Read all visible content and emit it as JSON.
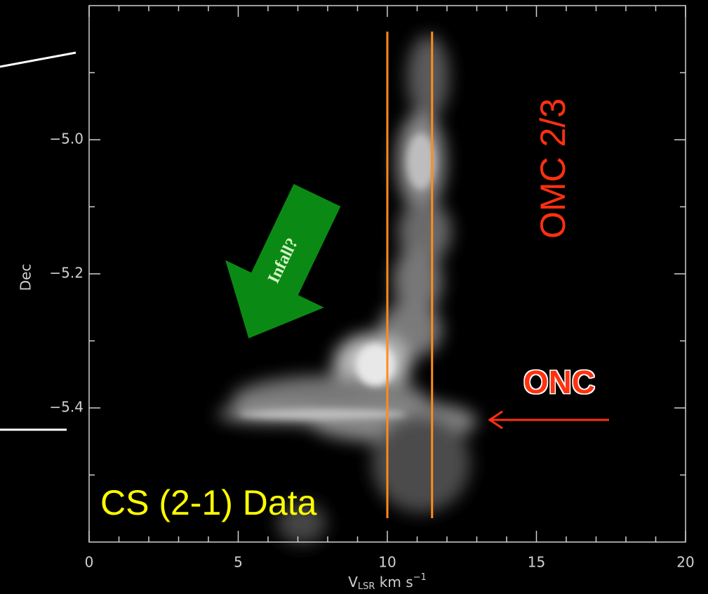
{
  "chart_data": {
    "type": "pv-diagram",
    "background": "#000000",
    "xlim": [
      0,
      20
    ],
    "ylim": [
      -5.6,
      -4.8
    ],
    "xticks": [
      0,
      5,
      10,
      15,
      20
    ],
    "xminorticks": [
      1,
      2,
      3,
      4,
      6,
      7,
      8,
      9,
      11,
      12,
      13,
      14,
      16,
      17,
      18,
      19
    ],
    "yticks": [
      {
        "value": -5.0,
        "label": "−5.0"
      },
      {
        "value": -5.2,
        "label": "−5.2"
      },
      {
        "value": -5.4,
        "label": "−5.4"
      }
    ],
    "yminorticks": [
      -4.9,
      -5.1,
      -5.3,
      -5.5
    ],
    "ylabel": "Dec",
    "xlabel": {
      "base": "V",
      "sub": "LSR",
      "unit": " km s",
      "sup": "−1"
    },
    "vlines": {
      "x": [
        10,
        11.5
      ],
      "color": "#ff8c1a"
    },
    "annotations": {
      "data_label": "CS (2-1) Data",
      "infall": "Infall?",
      "omc": "OMC 2/3",
      "onc": "ONC"
    }
  }
}
